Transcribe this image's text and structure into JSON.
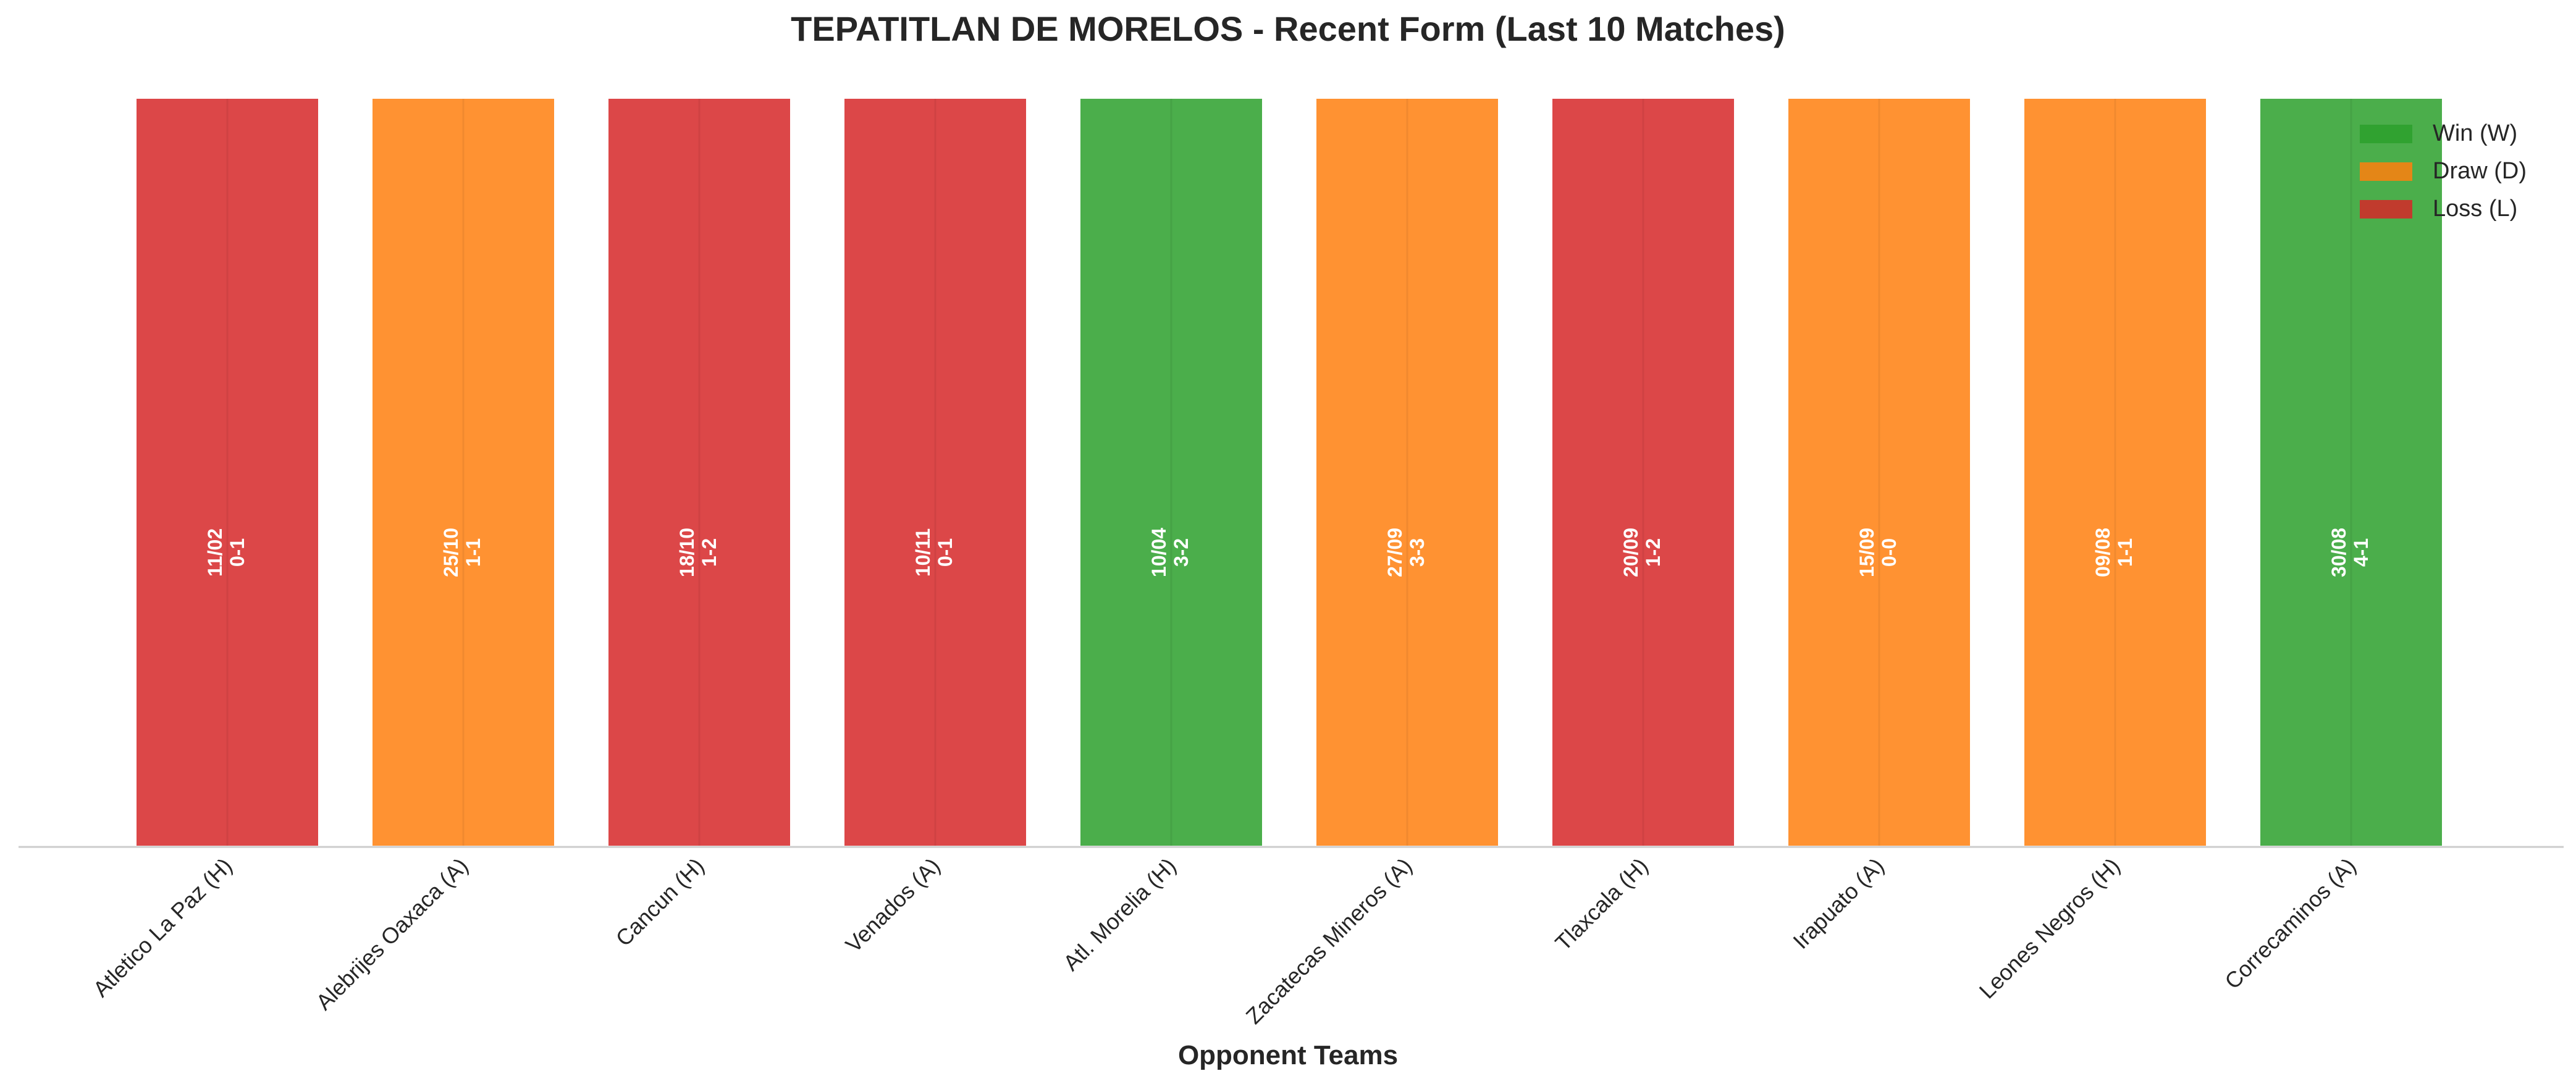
{
  "chart_data": {
    "type": "bar",
    "title": "TEPATITLAN DE MORELOS - Recent Form (Last 10 Matches)",
    "xlabel": "Opponent Teams",
    "ylabel": "",
    "categories": [
      "Atletico La Paz (H)",
      "Alebrijes Oaxaca (A)",
      "Cancun (H)",
      "Venados (A)",
      "Atl. Morelia (H)",
      "Zacatecas Mineros (A)",
      "Tlaxcala (H)",
      "Irapuato (A)",
      "Leones Negros (H)",
      "Correcaminos (A)"
    ],
    "values": [
      1,
      1,
      1,
      1,
      1,
      1,
      1,
      1,
      1,
      1
    ],
    "results": [
      "L",
      "D",
      "L",
      "L",
      "W",
      "D",
      "L",
      "D",
      "D",
      "W"
    ],
    "dates": [
      "11/02",
      "25/10",
      "18/10",
      "10/11",
      "10/04",
      "27/09",
      "20/09",
      "15/09",
      "09/08",
      "30/08"
    ],
    "scores": [
      "0-1",
      "1-1",
      "1-2",
      "0-1",
      "3-2",
      "3-3",
      "1-2",
      "0-0",
      "1-1",
      "4-1"
    ],
    "colors": {
      "W": "#2ca02c",
      "D": "#ff7f0e",
      "L": "#d62728"
    },
    "grid": false,
    "legend": {
      "placement": "top-right",
      "entries": [
        {
          "key": "W",
          "label": "Win (W)"
        },
        {
          "key": "D",
          "label": "Draw (D)"
        },
        {
          "key": "L",
          "label": "Loss (L)"
        }
      ]
    }
  }
}
